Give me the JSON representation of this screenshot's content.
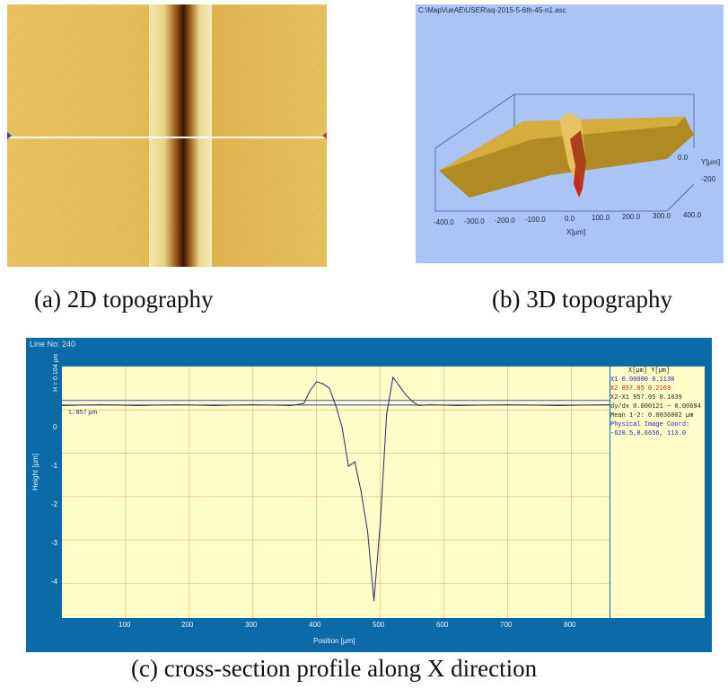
{
  "captions": {
    "a": "(a) 2D topography",
    "b": "(b) 3D topography",
    "c": "(c) cross-section profile along X direction"
  },
  "panel_b": {
    "file_path": "C:\\MapVueAE\\USER\\sq-2015-5-6th-45-n1.asc",
    "x_ticks": [
      "-400.0",
      "-300.0",
      "-200.0",
      "-100.0",
      "0.0",
      "100.0",
      "200.0",
      "300.0",
      "400.0"
    ],
    "x_label": "X[µm]",
    "y_ticks": [
      "0.0",
      "-200"
    ],
    "y_label": "Y[µm]"
  },
  "panel_c": {
    "title": "Line No: 240",
    "marker_label": "L: 857 µm",
    "side_label": "H = 0.104 µm",
    "y_label": "Height [µm]",
    "x_label": "Position [µm]",
    "y_ticks": [
      "0",
      "-1",
      "-2",
      "-3",
      "-4"
    ],
    "x_ticks": [
      "100",
      "200",
      "300",
      "400",
      "500",
      "600",
      "700",
      "800"
    ],
    "readout": {
      "header": "X[µm]   Y[µm]",
      "x1": "X1    0.00000 0.1130",
      "x2": "X2     857.05 0.2169",
      "x2x1": "X2-X1     857.05 0.1039",
      "slope": "dy/dx 0.000121 ~ 0.00694",
      "mean": "Mean 1-2: 0.0036002 µm",
      "physical_label": "Physical Image Coord:",
      "physical_value": "-620.5,0.6656, 113.0"
    },
    "colors": {
      "frame": "#0c6aa8",
      "plot_bg": "#fffecb",
      "trace": "#3a3a66"
    }
  },
  "chart_data": {
    "type": "line",
    "xlabel": "Position [µm]",
    "ylabel": "Height [µm]",
    "xlim": [
      0,
      860
    ],
    "ylim": [
      -4.8,
      1.0
    ],
    "x": [
      0,
      60,
      120,
      180,
      240,
      300,
      360,
      380,
      390,
      400,
      410,
      420,
      430,
      440,
      450,
      460,
      470,
      480,
      490,
      500,
      510,
      520,
      530,
      540,
      550,
      560,
      580,
      620,
      700,
      780,
      860
    ],
    "y": [
      0.1,
      0.12,
      0.1,
      0.12,
      0.1,
      0.12,
      0.1,
      0.15,
      0.45,
      0.65,
      0.6,
      0.5,
      0.1,
      -0.4,
      -1.3,
      -1.2,
      -1.9,
      -2.8,
      -4.4,
      -2.6,
      -0.1,
      0.75,
      0.55,
      0.35,
      0.2,
      0.1,
      0.12,
      0.1,
      0.12,
      0.1,
      0.12
    ]
  }
}
